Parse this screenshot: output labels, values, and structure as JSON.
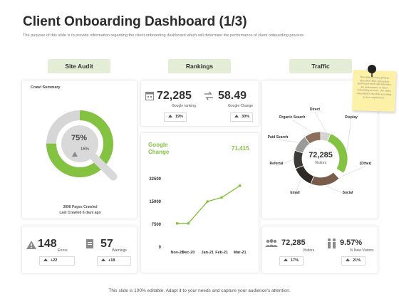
{
  "header": {
    "title": "Client Onboarding Dashboard (1/3)",
    "subtitle": "The purpose of this slide is to provide information regarding the client onboarding dashboard which will determine the performance of client onboarding process."
  },
  "sections": {
    "site_audit": "Site Audit",
    "rankings": "Rankings",
    "traffic": "Traffic"
  },
  "crawl": {
    "title": "Crawl Summary",
    "percent": "75%",
    "percent_value": 75,
    "sub_percent": "16%",
    "pages_crawled": "3898 Pages Crawled",
    "last_crawled": "Last Crawled 6 days ago"
  },
  "errors": {
    "value": "148",
    "label": "Errors",
    "delta": "+22"
  },
  "warnings": {
    "value": "57",
    "label": "Warnings",
    "delta": "+18"
  },
  "ranking": {
    "value": "72,285",
    "label": "Google ranking",
    "delta": "19%"
  },
  "change": {
    "value": "58.49",
    "label": "Google Change",
    "delta": "30%"
  },
  "google_change_chart": {
    "title_line1": "Google",
    "title_line2": "Change",
    "value": "71,415"
  },
  "chart_data": {
    "type": "line",
    "categories": [
      "Nov-20",
      "Dec-20",
      "Jan-21",
      "Feb-21",
      "Mar-21"
    ],
    "x": [
      0,
      0.55,
      1.5,
      2.2,
      3.1
    ],
    "values": [
      7800,
      7800,
      15000,
      16300,
      20200
    ],
    "yticks": [
      "0",
      "7500",
      "15000",
      "22500"
    ],
    "ytick_values": [
      0,
      7500,
      15000,
      22500
    ],
    "ylim": [
      0,
      22500
    ],
    "xlim": [
      -0.2,
      3.5
    ],
    "title": "",
    "xlabel": "",
    "ylabel": "",
    "color": "#84c341"
  },
  "traffic": {
    "center_value": "72,285",
    "center_label": "Visitors",
    "segments": [
      {
        "name": "Direct",
        "value": 6,
        "color": "#d4d4d4"
      },
      {
        "name": "Display",
        "value": 28,
        "color": "#84c341"
      },
      {
        "name": "(Other)",
        "value": 4,
        "color": "#ffffff"
      },
      {
        "name": "Social",
        "value": 18,
        "color": "#7a5c4b"
      },
      {
        "name": "Email",
        "value": 13,
        "color": "#2f2a26"
      },
      {
        "name": "Referral",
        "value": 11,
        "color": "#3b3a37"
      },
      {
        "name": "Paid Search",
        "value": 10,
        "color": "#9a9a9a"
      },
      {
        "name": "Organic Search",
        "value": 10,
        "color": "#8e6f5e"
      }
    ]
  },
  "visitors": {
    "value": "72,285",
    "label": "Visitors",
    "delta": "17%"
  },
  "new_visitors": {
    "value": "9.57%",
    "label": "% New Visitors",
    "delta": "21%"
  },
  "note": {
    "text": "This slide provides glimpse about the client onboarding dashboard which will determine the performance of client onboarding process. Use sticky notes/click in the slide according to their requirement."
  },
  "footer": {
    "text": "This slide is 100% editable. Adapt it to your needs and capture your audience's attention."
  },
  "colors": {
    "accent": "#84c341",
    "pill": "#e4eed6",
    "brown": "#7a5c4b"
  }
}
